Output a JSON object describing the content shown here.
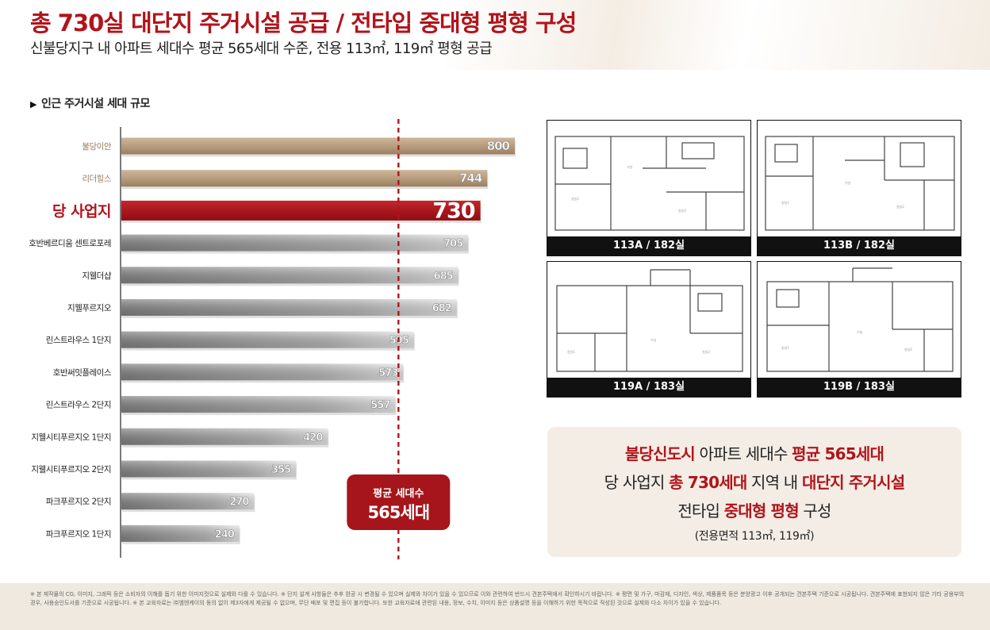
{
  "header": {
    "title": "총 730실 대단지 주거시설 공급 / 전타입 중대형 평형 구성",
    "subtitle": "신불당지구 내 아파트 세대수 평균 565세대 수준, 전용 113㎡, 119㎡ 평형 공급"
  },
  "section_label": "인근 주거시설 세대 규모",
  "chart_data": {
    "type": "bar",
    "orientation": "horizontal",
    "categories": [
      "불당이안",
      "리더힐스",
      "당 사업지",
      "호반베르디움 센트로포레",
      "지웰더샵",
      "지웰푸르지오",
      "린스트라우스 1단지",
      "호반써밋플레이스",
      "린스트라우스 2단지",
      "지웰시티푸르지오 1단지",
      "지웰시티푸르지오 2단지",
      "파크푸르지오 2단지",
      "파크푸르지오 1단지"
    ],
    "values": [
      800,
      744,
      730,
      705,
      685,
      682,
      595,
      573,
      557,
      420,
      355,
      270,
      240
    ],
    "value_labels": [
      "800",
      "744",
      "730",
      "705",
      "685",
      "682",
      "595",
      "573",
      "557",
      "420",
      "355",
      "270",
      "240"
    ],
    "groups": [
      "tan",
      "tan",
      "highlight",
      "gray",
      "gray",
      "gray",
      "gray",
      "gray",
      "gray",
      "gray",
      "gray",
      "gray",
      "gray"
    ],
    "reference_line": {
      "value": 565,
      "label_line1": "평균 세대수",
      "label_line2": "565세대"
    },
    "colors": {
      "tan": "#b59a7a",
      "highlight": "#a5151b",
      "gray": "#9c9c9c",
      "reference": "#b1141b"
    },
    "grid": false,
    "legend": "none"
  },
  "floorplans": [
    {
      "label": "113A / 182실"
    },
    {
      "label": "113B / 182실"
    },
    {
      "label": "119A / 183실"
    },
    {
      "label": "119B / 183실"
    }
  ],
  "summary": {
    "line1": {
      "a": "불당신도시",
      "b": " 아파트 세대수 ",
      "c": "평균 565세대"
    },
    "line2": {
      "a": "당 사업지 ",
      "b": "총 730세대",
      "c": " 지역 내 ",
      "d": "대단지 주거시설"
    },
    "line3": {
      "a": "전타입 ",
      "b": "중대형 평형",
      "c": " 구성"
    },
    "line4": "(전용면적 113㎡, 119㎡)"
  },
  "footer": {
    "disclaimer": "※ 본 제작물의 CG, 이미지, 그래픽 등은 소비자의 이해를 돕기 위한 이미지컷으로 실제와 다를 수 있습니다. ※ 단지 설계 사항들은 추후 완공 시 변경될 수 있으며 실제와 차이가 있을 수 있으므로 이와 관련하여 반드시 견본주택에서 확인하시기 바랍니다. ※ 평면 및 가구, 마감재, 디자인, 색상, 제품품목 등은 분양광고 이후 공개되는 견본주택 기준으로 시공됩니다. 견본주택에 표현되지 않은 기타 공용부의 경우, 사용승인도서를 기준으로 시공됩니다. ※ 본 교육자료는 ㈜엠엔케이의 동의 없이 제3자에게 제공될 수 없으며, 무단 배포 및 편집 등이 불가합니다. 또한 교육자료에 관련된 내용, 정보, 수치, 이미지 등은 상품설명 등을 이해하기 위한 목적으로 작성된 것으로 실제와 다소 차이가 있을 수 있습니다."
  }
}
